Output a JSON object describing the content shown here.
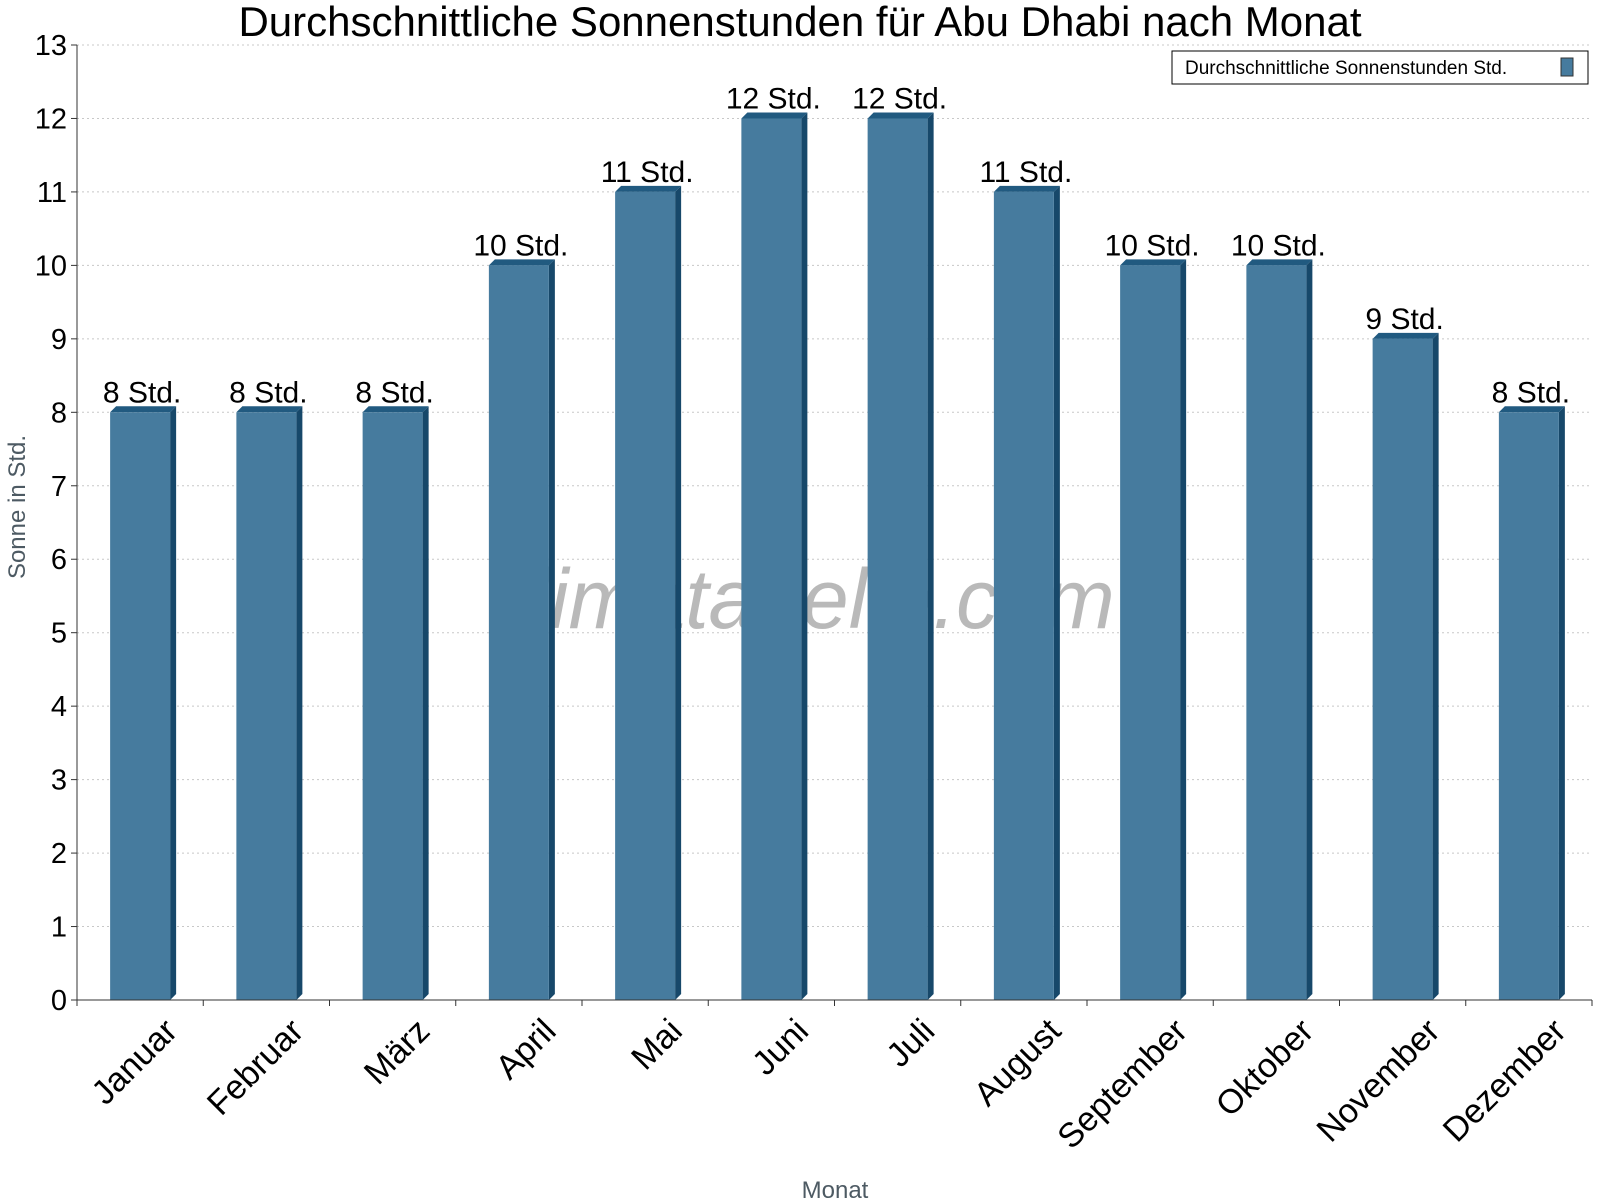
{
  "chart_data": {
    "type": "bar",
    "title": "Durchschnittliche Sonnenstunden für Abu Dhabi nach Monat",
    "xlabel": "Monat",
    "ylabel": "Sonne in Std.",
    "categories": [
      "Januar",
      "Februar",
      "März",
      "April",
      "Mai",
      "Juni",
      "Juli",
      "August",
      "September",
      "Oktober",
      "November",
      "Dezember"
    ],
    "series": [
      {
        "name": "Durchschnittliche Sonnenstunden Std.",
        "values": [
          8,
          8,
          8,
          10,
          11,
          12,
          12,
          11,
          10,
          10,
          9,
          8
        ],
        "labels": [
          "8 Std.",
          "8 Std.",
          "8 Std.",
          "10 Std.",
          "11 Std.",
          "12 Std.",
          "12 Std.",
          "11 Std.",
          "10 Std.",
          "10 Std.",
          "9 Std.",
          "8 Std."
        ]
      }
    ],
    "ylim": [
      0,
      13
    ],
    "yticks": [
      "0",
      "1",
      "2",
      "3",
      "4",
      "5",
      "6",
      "7",
      "8",
      "9",
      "10",
      "11",
      "12",
      "13"
    ],
    "grid": "horizontal dotted",
    "legend_position": "top-right",
    "watermark": "klimatabelle.com",
    "colors": {
      "bar_front": "#467b9e",
      "bar_side": "#17486a",
      "bar_top": "#215a80",
      "grid": "#c8c8c8",
      "axis": "#333333"
    }
  }
}
